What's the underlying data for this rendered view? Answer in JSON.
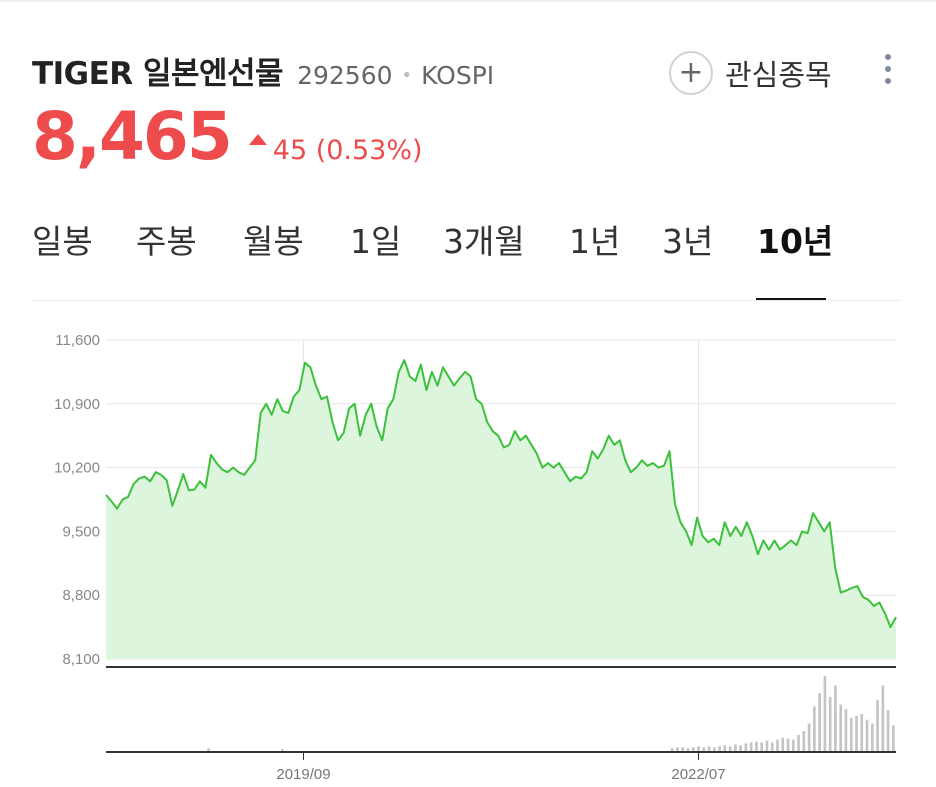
{
  "stock": {
    "name": "TIGER 일본엔선물",
    "code": "292560",
    "market": "KOSPI",
    "price": "8,465",
    "change": "45 (0.53%)",
    "change_direction": "up",
    "up_color": "#ee4c4c"
  },
  "actions": {
    "watchlist_label": "관심종목",
    "watchlist_icon": "plus-icon",
    "more_icon": "more-vertical-icon"
  },
  "tabs": [
    {
      "label": "일봉",
      "active": false
    },
    {
      "label": "주봉",
      "active": false
    },
    {
      "label": "월봉",
      "active": false
    },
    {
      "label": "1일",
      "active": false
    },
    {
      "label": "3개월",
      "active": false
    },
    {
      "label": "1년",
      "active": false
    },
    {
      "label": "3년",
      "active": false
    },
    {
      "label": "10년",
      "active": true
    }
  ],
  "chart_data": {
    "type": "area",
    "series_color": "#3cc13c",
    "fill_color": "#dcf5dc",
    "y_ticks": [
      "11,600",
      "10,900",
      "10,200",
      "9,500",
      "8,800",
      "8,100"
    ],
    "ylim": [
      8100,
      11600
    ],
    "x_ticks": [
      "2019/09",
      "2022/07"
    ],
    "x_tick_positions": [
      0.25,
      0.75
    ],
    "grid": true,
    "values": [
      9900,
      9830,
      9750,
      9850,
      9880,
      10020,
      10080,
      10100,
      10050,
      10150,
      10120,
      10060,
      9780,
      9950,
      10130,
      9950,
      9960,
      10050,
      9980,
      10340,
      10250,
      10180,
      10150,
      10200,
      10150,
      10120,
      10200,
      10280,
      10800,
      10900,
      10780,
      10950,
      10820,
      10800,
      10980,
      11050,
      11350,
      11300,
      11100,
      10950,
      10980,
      10700,
      10500,
      10580,
      10850,
      10900,
      10550,
      10780,
      10900,
      10650,
      10500,
      10850,
      10950,
      11250,
      11380,
      11200,
      11150,
      11330,
      11050,
      11250,
      11100,
      11300,
      11200,
      11100,
      11180,
      11250,
      11200,
      10950,
      10900,
      10700,
      10600,
      10550,
      10420,
      10450,
      10600,
      10500,
      10550,
      10450,
      10350,
      10200,
      10250,
      10200,
      10250,
      10150,
      10050,
      10100,
      10080,
      10150,
      10380,
      10300,
      10400,
      10550,
      10450,
      10500,
      10280,
      10150,
      10200,
      10280,
      10220,
      10250,
      10200,
      10220,
      10380,
      9800,
      9600,
      9500,
      9350,
      9650,
      9450,
      9380,
      9420,
      9350,
      9600,
      9450,
      9550,
      9450,
      9600,
      9450,
      9250,
      9400,
      9300,
      9400,
      9300,
      9350,
      9400,
      9350,
      9500,
      9480,
      9700,
      9600,
      9500,
      9600,
      9100,
      8830,
      8850,
      8880,
      8900,
      8780,
      8750,
      8680,
      8720,
      8600,
      8450,
      8560
    ]
  },
  "volume_data": [
    0,
    0,
    0,
    0,
    0,
    0,
    0,
    0,
    0,
    0,
    0,
    0,
    0,
    0,
    0,
    0,
    0,
    0,
    0,
    4,
    0,
    0,
    0,
    0,
    0,
    0,
    0,
    0,
    0,
    0,
    0,
    0,
    0,
    3,
    0,
    0,
    0,
    0,
    0,
    0,
    0,
    0,
    0,
    0,
    0,
    0,
    0,
    0,
    0,
    0,
    0,
    0,
    0,
    0,
    0,
    0,
    0,
    0,
    0,
    0,
    0,
    0,
    0,
    0,
    0,
    0,
    0,
    0,
    0,
    0,
    0,
    0,
    0,
    0,
    0,
    0,
    0,
    0,
    0,
    0,
    0,
    0,
    0,
    0,
    0,
    0,
    0,
    0,
    0,
    0,
    0,
    0,
    0,
    0,
    0,
    0,
    0,
    0,
    0,
    0,
    0,
    0,
    0,
    0,
    0,
    0,
    0,
    4,
    5,
    5,
    4,
    5,
    6,
    5,
    6,
    5,
    6,
    7,
    6,
    8,
    7,
    9,
    10,
    11,
    10,
    12,
    10,
    13,
    15,
    14,
    13,
    18,
    22,
    30,
    48,
    62,
    80,
    58,
    70,
    50,
    45,
    36,
    38,
    40,
    34,
    30,
    55,
    70,
    44,
    28
  ]
}
